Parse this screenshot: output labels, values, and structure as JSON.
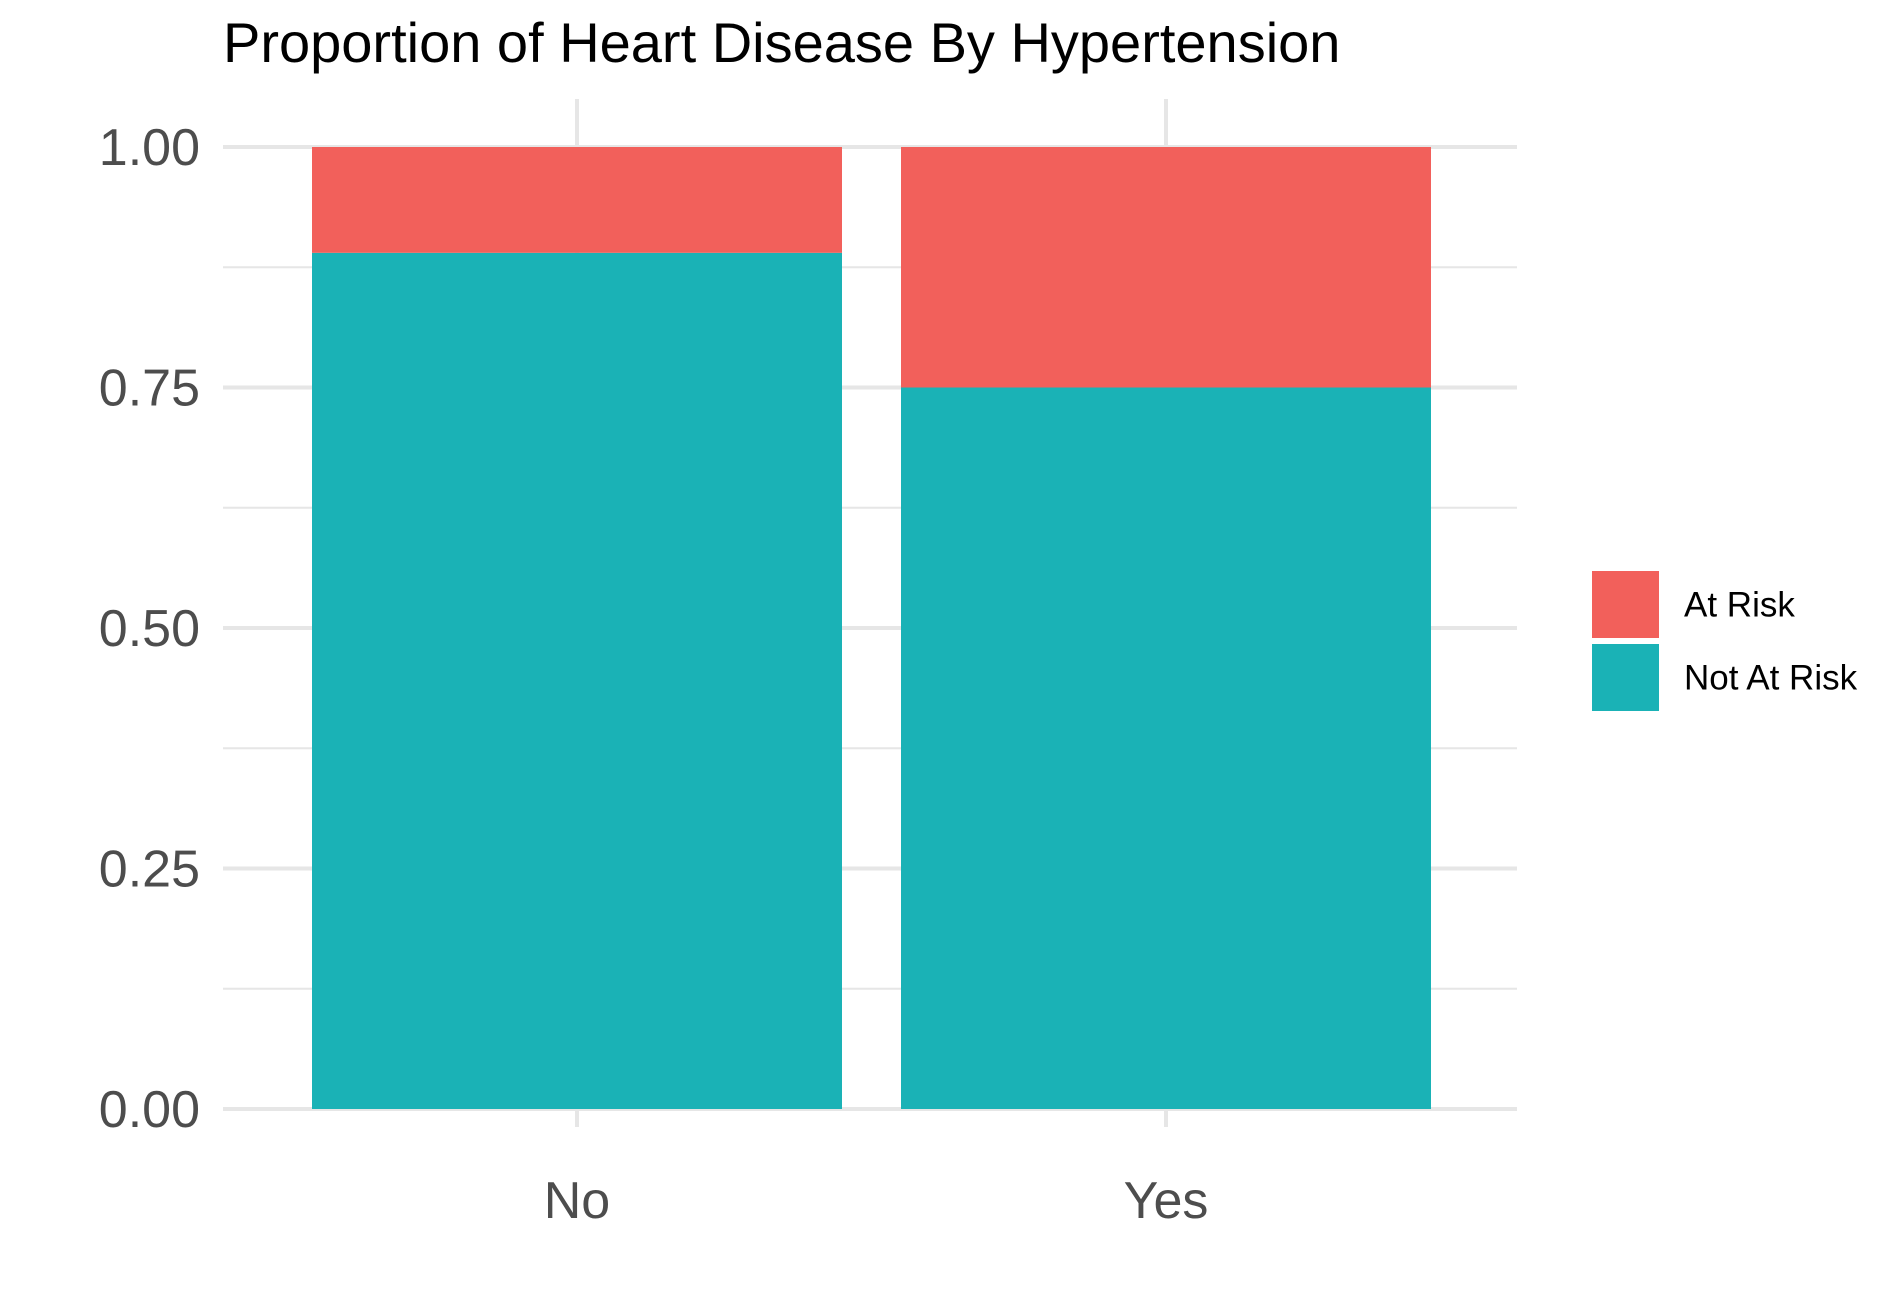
{
  "chart_data": {
    "type": "bar",
    "stacked": true,
    "title": "Proportion of Heart Disease By Hypertension",
    "xlabel": "",
    "ylabel": "",
    "categories": [
      "No",
      "Yes"
    ],
    "ylim": [
      0,
      1
    ],
    "y_ticks": [
      0,
      0.25,
      0.5,
      0.75,
      1
    ],
    "y_tick_labels": [
      "0.00",
      "0.25",
      "0.50",
      "0.75",
      "1.00"
    ],
    "grid": true,
    "legend_position": "right",
    "series": [
      {
        "name": "Not At Risk",
        "color": "#1AB2B6",
        "values": [
          0.89,
          0.75
        ]
      },
      {
        "name": "At Risk",
        "color": "#F2605B",
        "values": [
          0.11,
          0.25
        ]
      }
    ],
    "legend_order": [
      "At Risk",
      "Not At Risk"
    ],
    "grid_color": "#e6e6e6",
    "background_color": "#ffffff"
  }
}
